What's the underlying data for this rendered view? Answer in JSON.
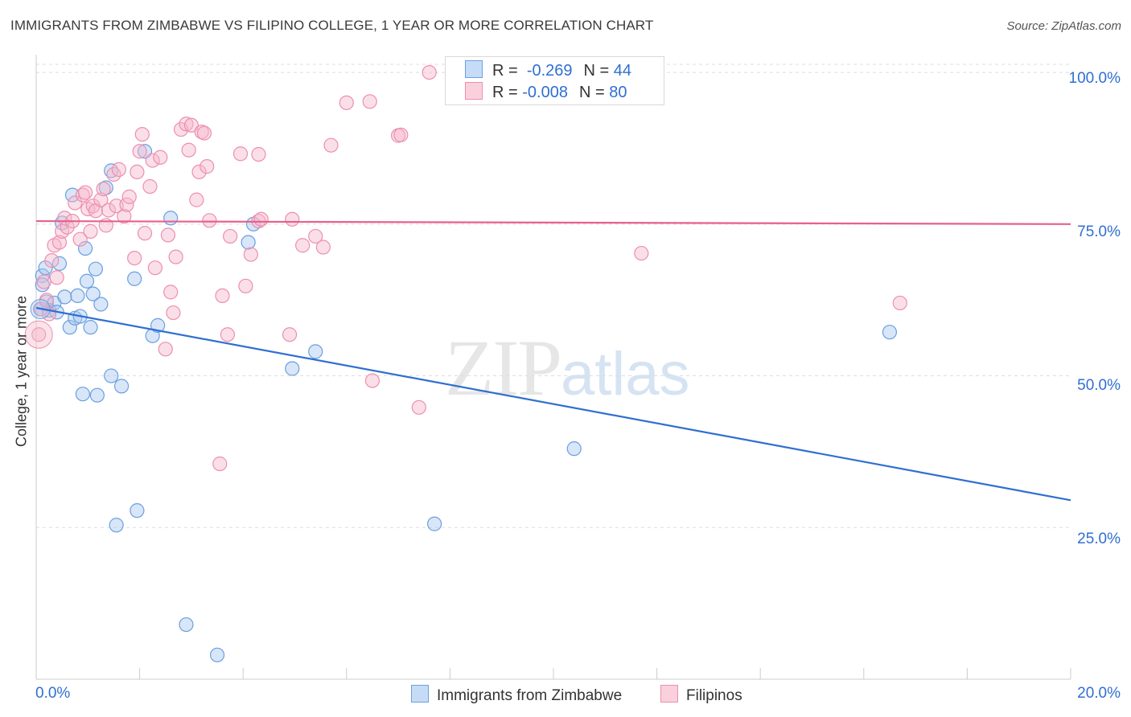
{
  "header": {
    "title": "IMMIGRANTS FROM ZIMBABWE VS FILIPINO COLLEGE, 1 YEAR OR MORE CORRELATION CHART",
    "source": "Source: ZipAtlas.com"
  },
  "watermark": {
    "zip": "ZIP",
    "atlas": "atlas"
  },
  "legend_top": {
    "rows": [
      {
        "r_label": "R =",
        "r_value": "-0.269",
        "n_label": "N =",
        "n_value": "44"
      },
      {
        "r_label": "R =",
        "r_value": "-0.008",
        "n_label": "N =",
        "n_value": "80"
      }
    ]
  },
  "colors": {
    "blue_fill": "#a9c8f0",
    "blue_stroke": "#6b9fe0",
    "blue_line": "#2f6fd1",
    "pink_fill": "#f6b8cb",
    "pink_stroke": "#ec8fae",
    "pink_line": "#e8608c",
    "grid": "#dddddd",
    "axis_text": "#2f6fd1"
  },
  "chart_data": {
    "type": "scatter",
    "title": "IMMIGRANTS FROM ZIMBABWE VS FILIPINO COLLEGE, 1 YEAR OR MORE CORRELATION CHART",
    "xlabel": "",
    "ylabel": "College, 1 year or more",
    "xlim": [
      0,
      20
    ],
    "ylim": [
      0,
      102
    ],
    "x_tick_labels": [
      "0.0%",
      "20.0%"
    ],
    "y_ticks": [
      25,
      50,
      75,
      100
    ],
    "y_tick_labels": [
      "25.0%",
      "50.0%",
      "75.0%",
      "100.0%"
    ],
    "legend_position": "bottom",
    "series": [
      {
        "name": "Immigrants from Zimbabwe",
        "color": "blue",
        "R": -0.269,
        "N": 44,
        "trend": {
          "x": [
            0,
            20
          ],
          "y": [
            61.2,
            29.5
          ]
        },
        "points": [
          [
            0.12,
            66.5
          ],
          [
            0.12,
            65.0
          ],
          [
            0.18,
            67.8
          ],
          [
            0.2,
            62.2
          ],
          [
            0.25,
            60.8
          ],
          [
            0.35,
            62.0
          ],
          [
            0.4,
            60.5
          ],
          [
            0.45,
            68.5
          ],
          [
            0.5,
            75.2
          ],
          [
            0.55,
            63.0
          ],
          [
            0.65,
            58.0
          ],
          [
            0.7,
            79.8
          ],
          [
            0.75,
            59.5
          ],
          [
            0.8,
            63.2
          ],
          [
            0.85,
            59.8
          ],
          [
            0.9,
            47.0
          ],
          [
            0.95,
            71.0
          ],
          [
            0.98,
            65.6
          ],
          [
            1.05,
            58.0
          ],
          [
            1.1,
            63.5
          ],
          [
            1.15,
            67.6
          ],
          [
            1.18,
            46.8
          ],
          [
            1.25,
            61.8
          ],
          [
            1.35,
            81.0
          ],
          [
            1.45,
            83.8
          ],
          [
            1.45,
            50.0
          ],
          [
            1.55,
            25.4
          ],
          [
            1.65,
            48.3
          ],
          [
            1.9,
            66.0
          ],
          [
            1.95,
            27.8
          ],
          [
            2.1,
            87.0
          ],
          [
            2.25,
            56.6
          ],
          [
            2.35,
            58.3
          ],
          [
            2.6,
            76.0
          ],
          [
            2.9,
            9.0
          ],
          [
            3.5,
            4.0
          ],
          [
            4.1,
            72.0
          ],
          [
            4.2,
            75.0
          ],
          [
            4.95,
            51.2
          ],
          [
            5.4,
            54.0
          ],
          [
            7.7,
            25.6
          ],
          [
            10.4,
            38.0
          ],
          [
            16.5,
            57.2
          ],
          [
            0.08,
            61.0
          ]
        ]
      },
      {
        "name": "Filipinos",
        "color": "pink",
        "R": -0.008,
        "N": 80,
        "trend": {
          "x": [
            0,
            20
          ],
          "y": [
            75.5,
            75.0
          ]
        },
        "points": [
          [
            0.05,
            56.8
          ],
          [
            0.1,
            61.0
          ],
          [
            0.15,
            65.5
          ],
          [
            0.2,
            62.5
          ],
          [
            0.3,
            69.0
          ],
          [
            0.35,
            71.5
          ],
          [
            0.45,
            72.0
          ],
          [
            0.5,
            73.8
          ],
          [
            0.55,
            76.0
          ],
          [
            0.6,
            74.5
          ],
          [
            0.7,
            75.5
          ],
          [
            0.75,
            78.5
          ],
          [
            0.85,
            72.5
          ],
          [
            0.9,
            79.8
          ],
          [
            0.95,
            80.2
          ],
          [
            1.0,
            77.5
          ],
          [
            1.05,
            73.8
          ],
          [
            1.1,
            78.0
          ],
          [
            1.15,
            77.2
          ],
          [
            1.25,
            79.0
          ],
          [
            1.3,
            80.8
          ],
          [
            1.35,
            74.8
          ],
          [
            1.4,
            77.3
          ],
          [
            1.5,
            83.2
          ],
          [
            1.55,
            78.0
          ],
          [
            1.6,
            84.0
          ],
          [
            1.7,
            76.3
          ],
          [
            1.75,
            78.2
          ],
          [
            1.8,
            79.5
          ],
          [
            1.9,
            69.4
          ],
          [
            1.95,
            83.6
          ],
          [
            2.0,
            87.0
          ],
          [
            2.05,
            89.8
          ],
          [
            2.1,
            73.5
          ],
          [
            2.2,
            81.2
          ],
          [
            2.25,
            85.5
          ],
          [
            2.3,
            67.8
          ],
          [
            2.4,
            86.0
          ],
          [
            2.5,
            54.4
          ],
          [
            2.55,
            73.2
          ],
          [
            2.6,
            63.8
          ],
          [
            2.65,
            60.4
          ],
          [
            2.7,
            69.6
          ],
          [
            2.8,
            90.6
          ],
          [
            2.9,
            91.5
          ],
          [
            2.95,
            87.2
          ],
          [
            3.0,
            91.3
          ],
          [
            3.1,
            79.0
          ],
          [
            3.15,
            83.6
          ],
          [
            3.2,
            90.2
          ],
          [
            3.25,
            90.0
          ],
          [
            3.3,
            84.5
          ],
          [
            3.35,
            75.6
          ],
          [
            3.55,
            35.5
          ],
          [
            3.6,
            63.2
          ],
          [
            3.7,
            56.8
          ],
          [
            3.75,
            73.0
          ],
          [
            3.95,
            86.6
          ],
          [
            4.05,
            64.8
          ],
          [
            4.15,
            70.0
          ],
          [
            4.3,
            86.5
          ],
          [
            4.3,
            75.5
          ],
          [
            4.35,
            75.8
          ],
          [
            4.9,
            56.8
          ],
          [
            4.95,
            75.8
          ],
          [
            5.15,
            71.5
          ],
          [
            5.4,
            73.0
          ],
          [
            5.55,
            71.2
          ],
          [
            5.7,
            88.0
          ],
          [
            6.0,
            95.0
          ],
          [
            6.45,
            95.2
          ],
          [
            6.5,
            49.2
          ],
          [
            7.0,
            89.6
          ],
          [
            7.05,
            89.7
          ],
          [
            7.4,
            44.8
          ],
          [
            7.6,
            100.0
          ],
          [
            11.7,
            70.2
          ],
          [
            16.7,
            62.0
          ],
          [
            0.25,
            60.2
          ],
          [
            0.4,
            66.2
          ]
        ]
      }
    ]
  },
  "axis": {
    "x_left": "0.0%",
    "x_right": "20.0%",
    "y_label": "College, 1 year or more"
  },
  "legend_bottom": {
    "items": [
      {
        "label": "Immigrants from Zimbabwe"
      },
      {
        "label": "Filipinos"
      }
    ]
  }
}
